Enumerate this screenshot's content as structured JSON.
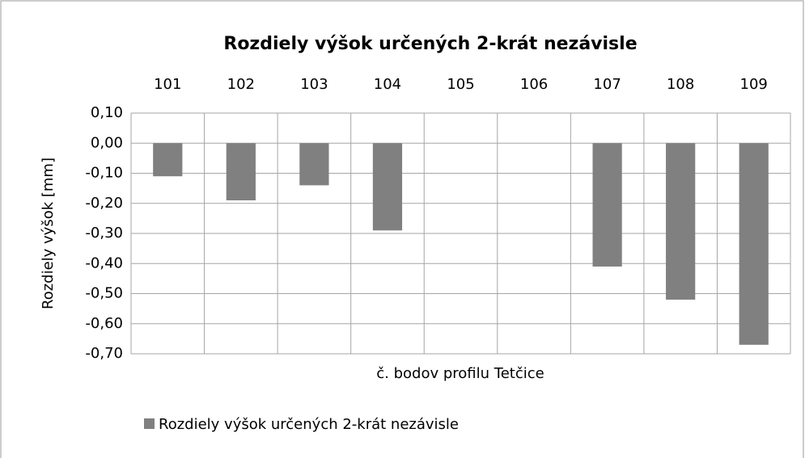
{
  "chart_data": {
    "type": "bar",
    "title": "Rozdiely výšok určených 2-krát nezávisle",
    "x_label": "č. bodov profilu Tetčice",
    "y_label": "Rozdiely výšok [mm]",
    "categories": [
      "101",
      "102",
      "103",
      "104",
      "105",
      "106",
      "107",
      "108",
      "109"
    ],
    "series": [
      {
        "name": "Rozdiely výšok určených 2-krát nezávisle",
        "color": "#808080",
        "values": [
          -0.11,
          -0.19,
          -0.14,
          -0.29,
          0,
          0,
          -0.41,
          -0.52,
          -0.67
        ]
      }
    ],
    "ylim": [
      -0.7,
      0.1
    ],
    "yticks": [
      {
        "value": -0.7,
        "label": "-0,70"
      },
      {
        "value": -0.6,
        "label": "-0,60"
      },
      {
        "value": -0.5,
        "label": "-0,50"
      },
      {
        "value": -0.4,
        "label": "-0,40"
      },
      {
        "value": -0.3,
        "label": "-0,30"
      },
      {
        "value": -0.2,
        "label": "-0,20"
      },
      {
        "value": -0.1,
        "label": "-0,10"
      },
      {
        "value": 0,
        "label": "0,00"
      },
      {
        "value": 0.1,
        "label": "0,10"
      }
    ],
    "grid": true,
    "legend": "bottom"
  }
}
